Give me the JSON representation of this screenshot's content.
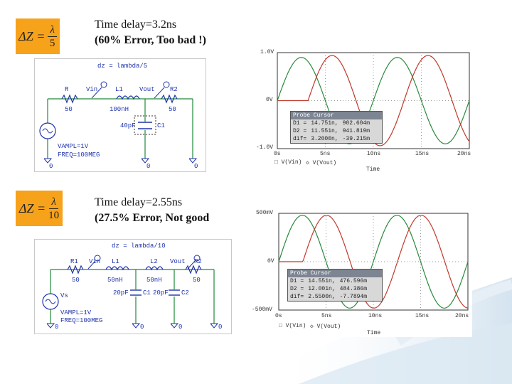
{
  "slide": {
    "top": {
      "formula": {
        "lhs": "ΔZ =",
        "numerator": "λ",
        "denominator": "5"
      },
      "caption_line1": "Time delay=3.2ns",
      "caption_line2": "(60% Error, Too bad !)",
      "schematic": {
        "title": "dz = lambda/5",
        "labels": {
          "r1": "R",
          "r1_val": "50",
          "vin": "Vin",
          "l1": "L1",
          "l1_val": "100nH",
          "vout": "Vout",
          "r2": "R2",
          "r2_val": "50",
          "c1": "C1",
          "c1_val": "40pF",
          "source": "VAMPL=1V",
          "freq": "FREQ=100MEG",
          "g1": "0",
          "g2": "0",
          "g3": "0"
        }
      },
      "scope": {
        "y_ticks": [
          "1.0V",
          "0V",
          "-1.0V"
        ],
        "x_ticks": [
          "0s",
          "5ns",
          "10ns",
          "15ns",
          "20ns"
        ],
        "xlabel": "Time",
        "legend": [
          "V(Vin)",
          "V(Vout)"
        ],
        "probe": {
          "title": "Probe Cursor",
          "rows": [
            {
              "k": "D1 =",
              "t": "14.751n,",
              "v": "902.604m"
            },
            {
              "k": "D2 =",
              "t": "11.551n,",
              "v": "941.819m"
            },
            {
              "k": "dif=",
              "t": "3.2000n,",
              "v": "-39.215m"
            }
          ]
        }
      }
    },
    "bottom": {
      "formula": {
        "lhs": "ΔZ =",
        "numerator": "λ",
        "denominator": "10"
      },
      "caption_line1": "Time delay=2.55ns",
      "caption_line2": "(27.5% Error, Not good",
      "schematic": {
        "title": "dz = lambda/10",
        "labels": {
          "r1": "R1",
          "r1_val": "50",
          "vin": "Vin",
          "l1": "L1",
          "l1_val": "50nH",
          "l2": "L2",
          "l2_val": "50nH",
          "vout": "Vout",
          "r2": "R2",
          "r2_val": "50",
          "c1": "C1",
          "c1_val": "20pF",
          "c2": "C2",
          "c2_val": "20pF",
          "source_name": "Vs",
          "source": "VAMPL=1V",
          "freq": "FREQ=100MEG",
          "g1": "0",
          "g2": "0",
          "g3": "0",
          "g4": "0"
        }
      },
      "scope": {
        "y_ticks": [
          "500mV",
          "0V",
          "-500mV"
        ],
        "x_ticks": [
          "0s",
          "5ns",
          "10ns",
          "15ns",
          "20ns"
        ],
        "xlabel": "Time",
        "legend": [
          "V(Vin)",
          "V(Vout)"
        ],
        "probe": {
          "title": "Probe Cursor",
          "rows": [
            {
              "k": "D1 =",
              "t": "14.551n,",
              "v": "476.596m"
            },
            {
              "k": "D2 =",
              "t": "12.001n,",
              "v": "484.386m"
            },
            {
              "k": "dif=",
              "t": "2.5500n,",
              "v": "-7.7894m"
            }
          ]
        }
      }
    },
    "colors": {
      "formula_bg": "#f7a21b",
      "trace_vin": "#2a8a3a",
      "trace_vout": "#c0392b",
      "wire": "#1f8a3a"
    }
  }
}
